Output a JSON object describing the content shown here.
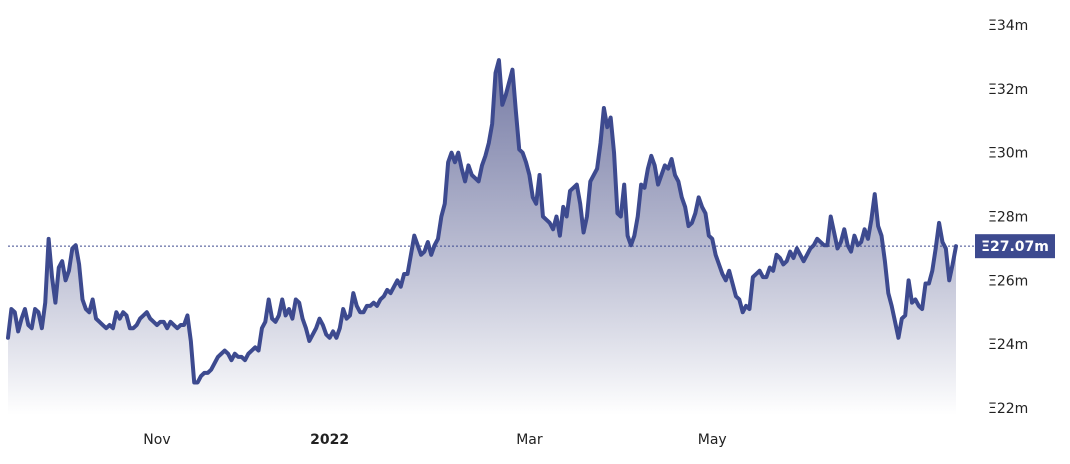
{
  "chart_data": {
    "type": "area",
    "title": "",
    "xlabel": "",
    "ylabel": "",
    "y_unit_prefix": "Ξ",
    "y_unit_suffix": "m",
    "ylim": [
      22,
      35
    ],
    "y_ticks": [
      {
        "value": 22,
        "label": "Ξ22m"
      },
      {
        "value": 24,
        "label": "Ξ24m"
      },
      {
        "value": 26,
        "label": "Ξ26m"
      },
      {
        "value": 28,
        "label": "Ξ28m"
      },
      {
        "value": 30,
        "label": "Ξ30m"
      },
      {
        "value": 32,
        "label": "Ξ32m"
      },
      {
        "value": 34,
        "label": "Ξ34m"
      }
    ],
    "x_ticks": [
      {
        "index": 44,
        "label": "Nov",
        "bold": false
      },
      {
        "index": 95,
        "label": "2022",
        "bold": true
      },
      {
        "index": 154,
        "label": "Mar",
        "bold": false
      },
      {
        "index": 208,
        "label": "May",
        "bold": false
      }
    ],
    "grid": false,
    "legend": "none",
    "current_price": {
      "value": 27.07,
      "label": "Ξ27.07m"
    },
    "colors": {
      "line": "#3d4a8f",
      "fill_top": "#5f6596",
      "fill_bottom": "#ffffff",
      "badge": "#3d4a8f",
      "reference_line": "#3d4a8f"
    },
    "series": [
      {
        "values": [
          24.2,
          25.1,
          25.0,
          24.4,
          24.8,
          25.1,
          24.6,
          24.5,
          25.1,
          25.0,
          24.5,
          25.3,
          27.3,
          26.1,
          25.3,
          26.4,
          26.6,
          26.0,
          26.3,
          27.0,
          27.1,
          26.5,
          25.4,
          25.1,
          25.0,
          25.4,
          24.8,
          24.7,
          24.6,
          24.5,
          24.6,
          24.5,
          25.0,
          24.8,
          25.0,
          24.9,
          24.5,
          24.5,
          24.6,
          24.8,
          24.9,
          25.0,
          24.8,
          24.7,
          24.6,
          24.7,
          24.7,
          24.5,
          24.7,
          24.6,
          24.5,
          24.6,
          24.6,
          24.9,
          24.1,
          22.8,
          22.8,
          23.0,
          23.1,
          23.1,
          23.2,
          23.4,
          23.6,
          23.7,
          23.8,
          23.7,
          23.5,
          23.7,
          23.6,
          23.6,
          23.5,
          23.7,
          23.8,
          23.9,
          23.8,
          24.5,
          24.7,
          25.4,
          24.8,
          24.7,
          24.9,
          25.4,
          24.9,
          25.1,
          24.8,
          25.4,
          25.3,
          24.8,
          24.5,
          24.1,
          24.3,
          24.5,
          24.8,
          24.6,
          24.3,
          24.2,
          24.4,
          24.2,
          24.5,
          25.1,
          24.8,
          24.9,
          25.6,
          25.2,
          25.0,
          25.0,
          25.2,
          25.2,
          25.3,
          25.2,
          25.4,
          25.5,
          25.7,
          25.6,
          25.8,
          26.0,
          25.8,
          26.2,
          26.2,
          26.8,
          27.4,
          27.1,
          26.8,
          26.9,
          27.2,
          26.8,
          27.1,
          27.3,
          28.0,
          28.4,
          29.7,
          30.0,
          29.7,
          30.0,
          29.5,
          29.1,
          29.6,
          29.3,
          29.2,
          29.1,
          29.6,
          29.9,
          30.3,
          30.9,
          32.5,
          32.9,
          31.5,
          31.8,
          32.2,
          32.6,
          31.3,
          30.1,
          30.0,
          29.7,
          29.3,
          28.6,
          28.4,
          29.3,
          28.0,
          27.9,
          27.8,
          27.6,
          28.0,
          27.4,
          28.3,
          28.0,
          28.8,
          28.9,
          29.0,
          28.4,
          27.5,
          28.0,
          29.1,
          29.3,
          29.5,
          30.3,
          31.4,
          30.8,
          31.1,
          30.0,
          28.1,
          28.0,
          29.0,
          27.4,
          27.1,
          27.4,
          28.0,
          29.0,
          28.9,
          29.5,
          29.9,
          29.6,
          29.0,
          29.3,
          29.6,
          29.5,
          29.8,
          29.3,
          29.1,
          28.6,
          28.3,
          27.7,
          27.8,
          28.1,
          28.6,
          28.3,
          28.1,
          27.4,
          27.3,
          26.8,
          26.5,
          26.2,
          26.0,
          26.3,
          25.9,
          25.5,
          25.4,
          25.0,
          25.2,
          25.1,
          26.1,
          26.2,
          26.3,
          26.1,
          26.1,
          26.4,
          26.3,
          26.8,
          26.7,
          26.5,
          26.6,
          26.9,
          26.7,
          27.0,
          26.8,
          26.6,
          26.8,
          27.0,
          27.1,
          27.3,
          27.2,
          27.1,
          27.1,
          28.0,
          27.5,
          27.0,
          27.2,
          27.6,
          27.1,
          26.9,
          27.4,
          27.1,
          27.2,
          27.6,
          27.3,
          27.9,
          28.7,
          27.7,
          27.4,
          26.6,
          25.6,
          25.2,
          24.7,
          24.2,
          24.8,
          24.9,
          26.0,
          25.3,
          25.4,
          25.2,
          25.1,
          25.9,
          25.9,
          26.3,
          27.0,
          27.8,
          27.2,
          27.0,
          26.0,
          26.5,
          27.07
        ]
      }
    ]
  }
}
